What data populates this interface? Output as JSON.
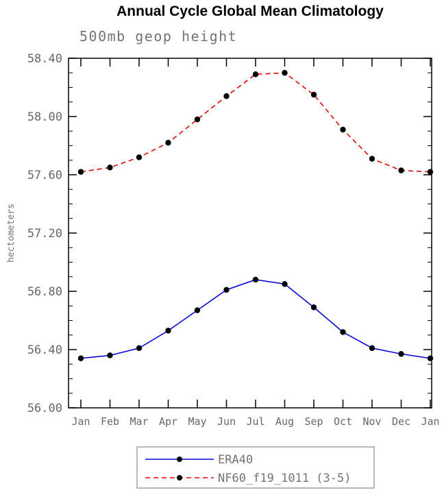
{
  "chart_data": {
    "type": "line",
    "title": "Annual Cycle Global Mean Climatology",
    "subtitle": "500mb geop height",
    "ylabel": "hectometers",
    "xlabel": "",
    "categories": [
      "Jan",
      "Feb",
      "Mar",
      "Apr",
      "May",
      "Jun",
      "Jul",
      "Aug",
      "Sep",
      "Oct",
      "Nov",
      "Dec",
      "Jan"
    ],
    "ylim": [
      56.0,
      58.4
    ],
    "yticks": [
      56.0,
      56.4,
      56.8,
      57.2,
      57.6,
      58.0,
      58.4
    ],
    "ytick_format_decimals": 2,
    "minor_tick_step": 0.1,
    "grid": "off",
    "legend_position": "bottom",
    "marker_color": "#000000",
    "series": [
      {
        "name": "ERA40",
        "color": "#0000dd",
        "style": "solid",
        "values": [
          56.34,
          56.36,
          56.41,
          56.53,
          56.67,
          56.81,
          56.88,
          56.85,
          56.69,
          56.52,
          56.41,
          56.37,
          56.34
        ]
      },
      {
        "name": "NF60_f19_1011 (3-5)",
        "color": "#e60000",
        "style": "dashed",
        "values": [
          57.62,
          57.65,
          57.72,
          57.82,
          57.98,
          58.14,
          58.29,
          58.3,
          58.15,
          57.91,
          57.71,
          57.63,
          57.62
        ]
      }
    ]
  }
}
